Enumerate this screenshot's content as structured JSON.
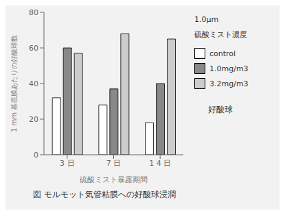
{
  "chart_data": {
    "type": "bar",
    "title": "図  モルモット気管粘膜への好酸球浸潤",
    "categories": [
      "3 日",
      "7 日",
      "1 4 日"
    ],
    "series": [
      {
        "name": "control",
        "color": "#ffffff",
        "values": [
          32,
          28,
          18
        ]
      },
      {
        "name": "1.0mg/m3",
        "color": "#888888",
        "values": [
          60,
          37,
          40
        ]
      },
      {
        "name": "3.2mg/m3",
        "color": "#cccccc",
        "values": [
          57,
          68,
          65
        ]
      }
    ],
    "xlabel": "硫酸ミスト暴露期間",
    "ylabel": "1 mm 基底膜あたりの好酸球数",
    "ylim": [
      0,
      80
    ],
    "yticks": [
      0,
      20,
      40,
      60,
      80
    ],
    "grid": false,
    "legend": "right",
    "annotations": [
      "1.0μm",
      "硫酸ミスト濃度",
      "好酸球"
    ]
  }
}
